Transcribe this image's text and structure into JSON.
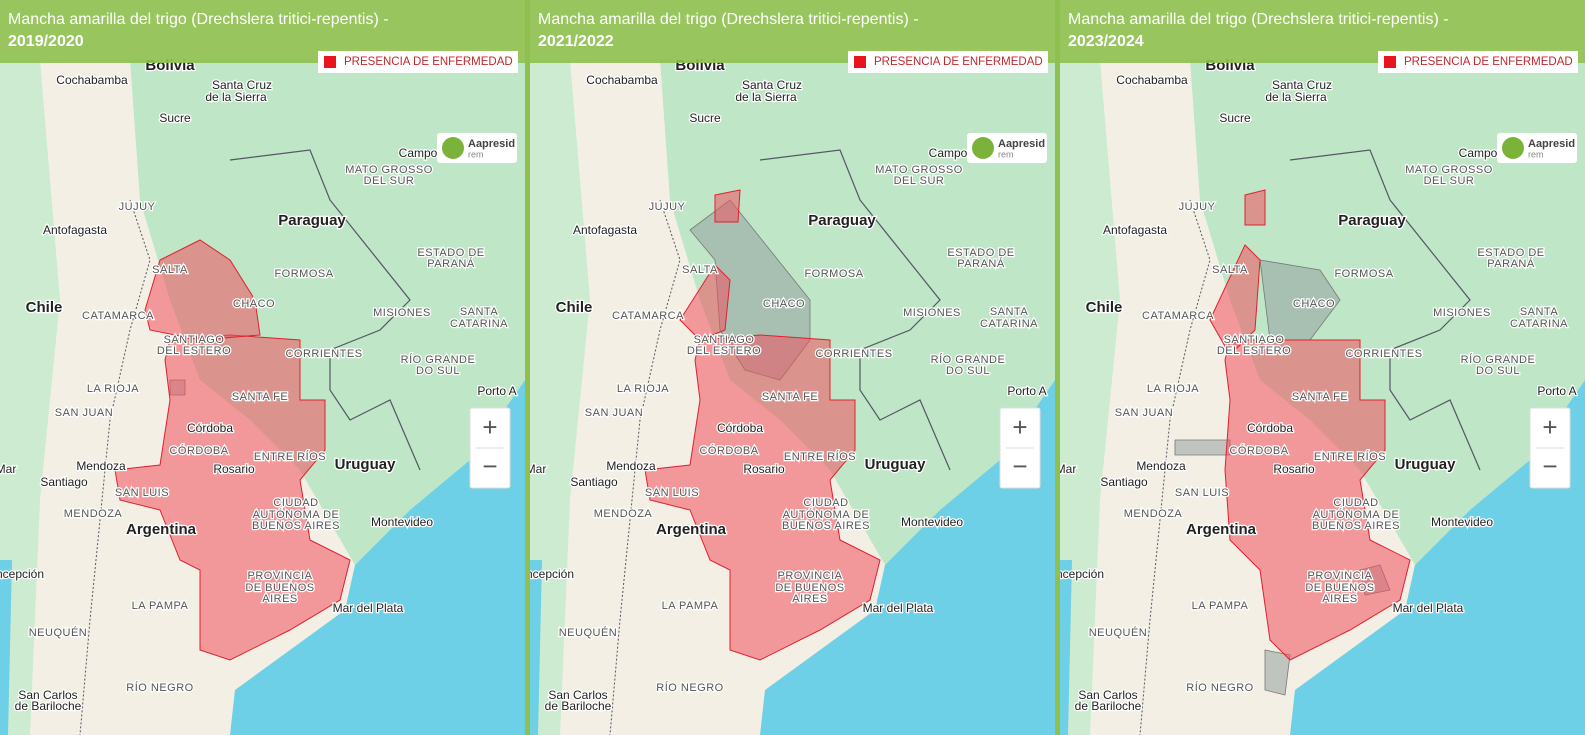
{
  "title": "Mancha amarilla del trigo (Drechslera tritici-repentis) -",
  "legend": "PRESENCIA DE ENFERMEDAD",
  "logo": {
    "name": "Aapresid",
    "sub": "rem"
  },
  "controls": {
    "zoom_in": "+",
    "zoom_out": "−"
  },
  "panels": [
    {
      "period": "2019/2020"
    },
    {
      "period": "2021/2022"
    },
    {
      "period": "2023/2024"
    }
  ],
  "map_labels": [
    "Bolivia",
    "Cochabamba",
    "Santa Cruz",
    "de la Sierra",
    "Sucre",
    "Campo",
    "MATO GROSSO",
    "DEL SUR",
    "JUJUY",
    "Antofagasta",
    "Paraguay",
    "ESTADO DE",
    "PARANÁ",
    "SALTA",
    "FORMOSA",
    "Chile",
    "CATAMARCA",
    "CHACO",
    "MISIONES",
    "SANTA",
    "CATARINA",
    "SANTIAGO",
    "DEL ESTERO",
    "CORRIENTES",
    "RÍO GRANDE",
    "DO SUL",
    "LA RIOJA",
    "Porto A",
    "SAN JUAN",
    "SANTA FE",
    "Córdoba",
    "CÓRDOBA",
    "ENTRE RÍOS",
    "Uruguay",
    "Rosario",
    "Mendoza",
    "Santiago",
    "SAN LUIS",
    "MENDOZA",
    "CIUDAD",
    "AUTÓNOMA DE",
    "BUENOS AIRES",
    "Montevideo",
    "Argentina",
    "PROVINCIA",
    "DE BUENOS",
    "AIRES",
    "Mar del Plata",
    "LA PAMPA",
    "NEUQUÉN",
    "RÍO NEGRO",
    "San Carlos",
    "de Bariloche",
    "ncepción",
    "Mar"
  ]
}
